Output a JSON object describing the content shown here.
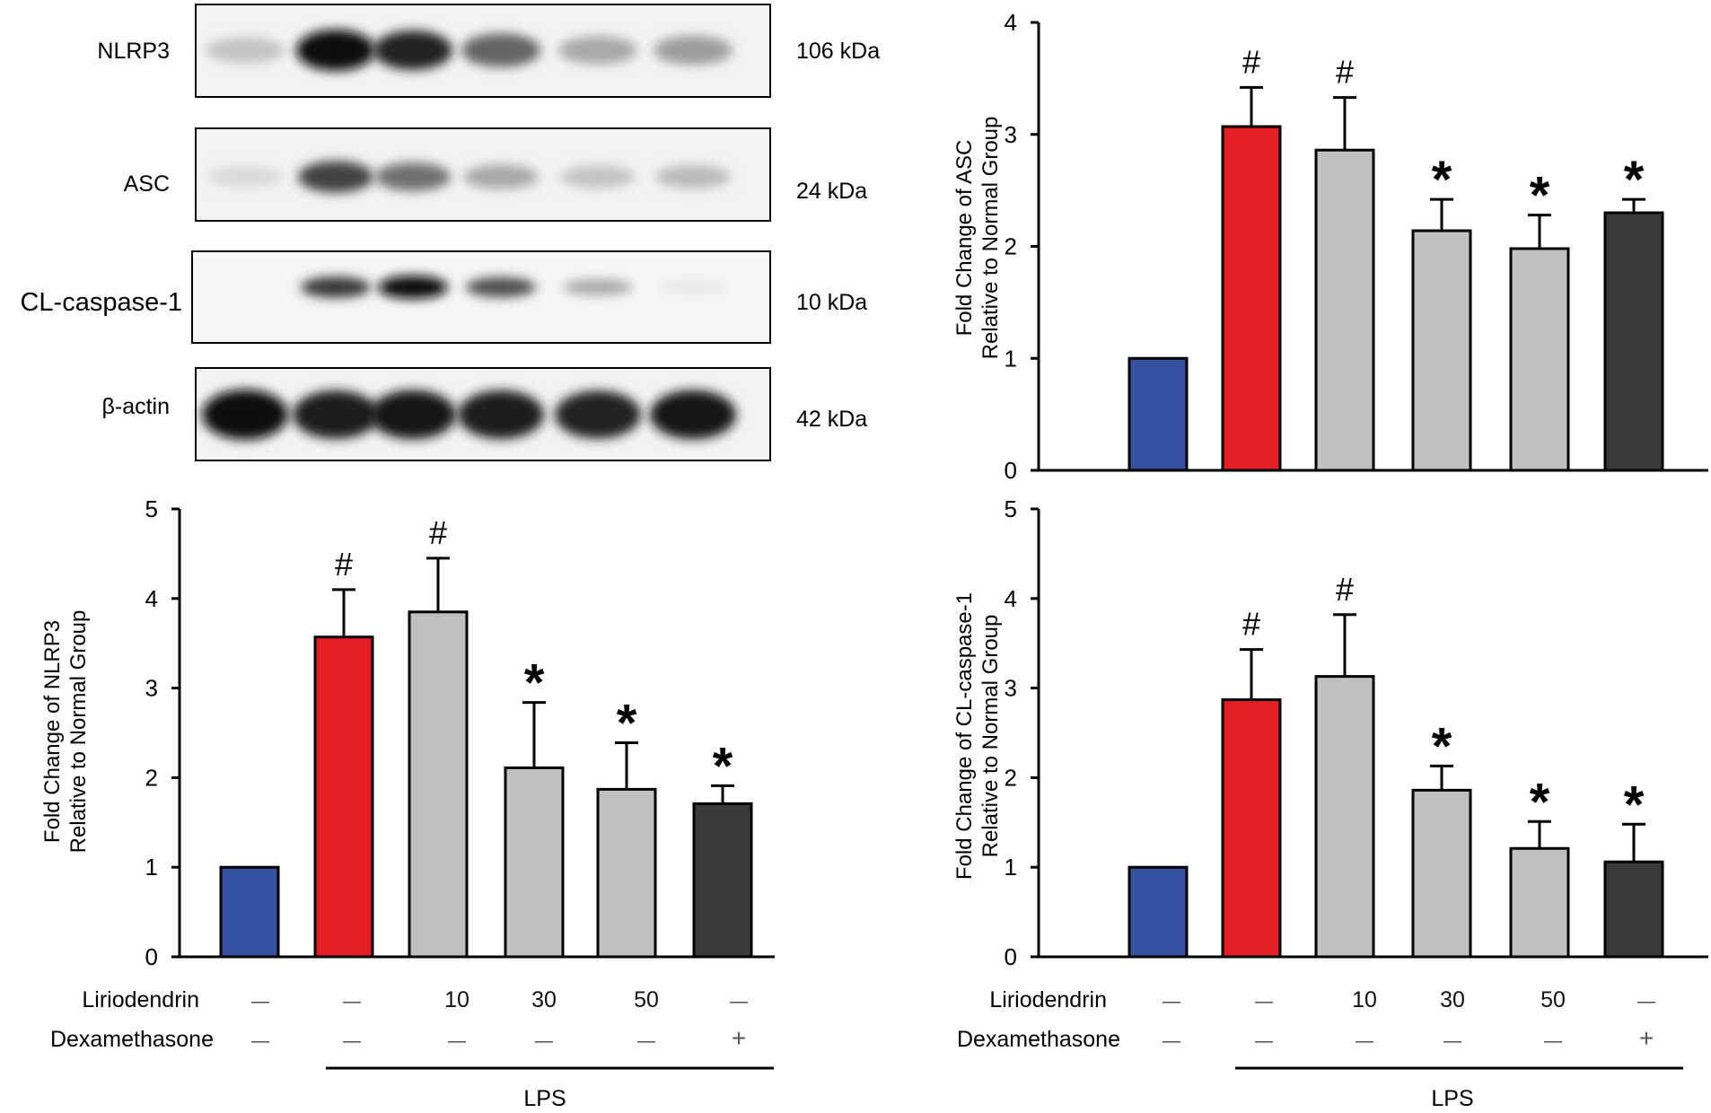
{
  "western_blot": {
    "rows": [
      {
        "label": "NLRP3",
        "size": "106 kDa",
        "bands": [
          0.18,
          1.0,
          0.9,
          0.6,
          0.3,
          0.35
        ]
      },
      {
        "label": "ASC",
        "size": "24 kDa",
        "bands": [
          0.08,
          0.75,
          0.55,
          0.3,
          0.18,
          0.22
        ]
      },
      {
        "label": "CL-caspase-1",
        "size": "10 kDa",
        "bands": [
          0.0,
          0.8,
          1.0,
          0.7,
          0.3,
          0.02
        ]
      },
      {
        "label": "β-actin",
        "size": "42 kDa",
        "bands": [
          1.0,
          0.92,
          0.95,
          0.93,
          0.9,
          0.95
        ]
      }
    ]
  },
  "colors": {
    "normal": "#3450a1",
    "lps": "#e31e24",
    "liriodendrin": "#c0c0c0",
    "dexamethasone": "#3a3a3a"
  },
  "treatment_table": {
    "liriodendrin_label": "Liriodendrin",
    "dexamethasone_label": "Dexamethasone",
    "liriodendrin_values": [
      "—",
      "—",
      "10",
      "30",
      "50",
      "—"
    ],
    "dexamethasone_values": [
      "—",
      "—",
      "—",
      "—",
      "—",
      "+"
    ],
    "lps_label": "LPS"
  },
  "chart_data": [
    {
      "id": "asc",
      "type": "bar",
      "ylabel_line1": "Fold Change of ASC",
      "ylabel_line2": "Relative to Normal Group",
      "ylim": [
        0,
        4
      ],
      "ticks": [
        "0",
        "1",
        "2",
        "3",
        "4"
      ],
      "values": [
        1.0,
        3.07,
        2.86,
        2.14,
        1.98,
        2.3
      ],
      "errors": [
        0,
        0.35,
        0.47,
        0.28,
        0.3,
        0.12
      ],
      "marks": [
        "",
        "#",
        "#",
        "*",
        "*",
        "*"
      ],
      "bar_colors": [
        "normal",
        "lps",
        "liriodendrin",
        "liriodendrin",
        "liriodendrin",
        "dexamethasone"
      ]
    },
    {
      "id": "nlrp3",
      "type": "bar",
      "ylabel_line1": "Fold Change of NLRP3",
      "ylabel_line2": "Relative to Normal Group",
      "ylim": [
        0,
        5
      ],
      "ticks": [
        "0",
        "1",
        "2",
        "3",
        "4",
        "5"
      ],
      "values": [
        1.0,
        3.57,
        3.85,
        2.11,
        1.87,
        1.71
      ],
      "errors": [
        0,
        0.53,
        0.6,
        0.73,
        0.52,
        0.2
      ],
      "marks": [
        "",
        "#",
        "#",
        "*",
        "*",
        "*"
      ],
      "bar_colors": [
        "normal",
        "lps",
        "liriodendrin",
        "liriodendrin",
        "liriodendrin",
        "dexamethasone"
      ]
    },
    {
      "id": "caspase",
      "type": "bar",
      "ylabel_line1": "Fold Change of CL-caspase-1",
      "ylabel_line2": "Relative to Normal Group",
      "ylim": [
        0,
        5
      ],
      "ticks": [
        "0",
        "1",
        "2",
        "3",
        "4",
        "5"
      ],
      "values": [
        1.0,
        2.87,
        3.13,
        1.86,
        1.21,
        1.06
      ],
      "errors": [
        0,
        0.56,
        0.69,
        0.27,
        0.3,
        0.42
      ],
      "marks": [
        "",
        "#",
        "#",
        "*",
        "*",
        "*"
      ],
      "bar_colors": [
        "normal",
        "lps",
        "liriodendrin",
        "liriodendrin",
        "liriodendrin",
        "dexamethasone"
      ]
    }
  ]
}
